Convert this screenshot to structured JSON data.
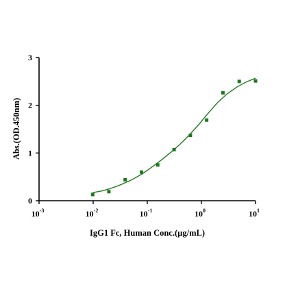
{
  "chart_data": {
    "type": "scatter",
    "xlabel": "IgG1 Fc, Human Conc.(µg/mL)",
    "ylabel": "Abs.(OD.450nm)",
    "x_scale": "log",
    "xlim": [
      0.001,
      10
    ],
    "ylim": [
      0,
      3
    ],
    "x_ticks": [
      {
        "value": 0.001,
        "base": "10",
        "exponent": "-3"
      },
      {
        "value": 0.01,
        "base": "10",
        "exponent": "-2"
      },
      {
        "value": 0.1,
        "base": "10",
        "exponent": "-1"
      },
      {
        "value": 1,
        "base": "10",
        "exponent": "0"
      },
      {
        "value": 10,
        "base": "10",
        "exponent": "1"
      }
    ],
    "y_ticks": [
      {
        "value": 0,
        "label": "0"
      },
      {
        "value": 1,
        "label": "1"
      },
      {
        "value": 2,
        "label": "2"
      },
      {
        "value": 3,
        "label": "3"
      }
    ],
    "grid": false,
    "marker_color": "#1a7a1a",
    "curve_color": "#1f7a1f",
    "series": [
      {
        "x": [
          0.0098,
          0.0195,
          0.039,
          0.078,
          0.156,
          0.3125,
          0.625,
          1.25,
          2.5,
          5,
          10
        ],
        "y": [
          0.13,
          0.19,
          0.44,
          0.6,
          0.75,
          1.07,
          1.37,
          1.69,
          2.26,
          2.5,
          2.51
        ]
      }
    ],
    "fit": {
      "x": [
        0.0098,
        0.015,
        0.02,
        0.03,
        0.05,
        0.08,
        0.12,
        0.18,
        0.27,
        0.4,
        0.6,
        0.9,
        1.3,
        2,
        3,
        4.5,
        6.5,
        10
      ],
      "y": [
        0.17,
        0.21,
        0.25,
        0.32,
        0.43,
        0.56,
        0.7,
        0.85,
        1.01,
        1.18,
        1.38,
        1.6,
        1.82,
        2.06,
        2.24,
        2.38,
        2.48,
        2.57
      ]
    }
  }
}
